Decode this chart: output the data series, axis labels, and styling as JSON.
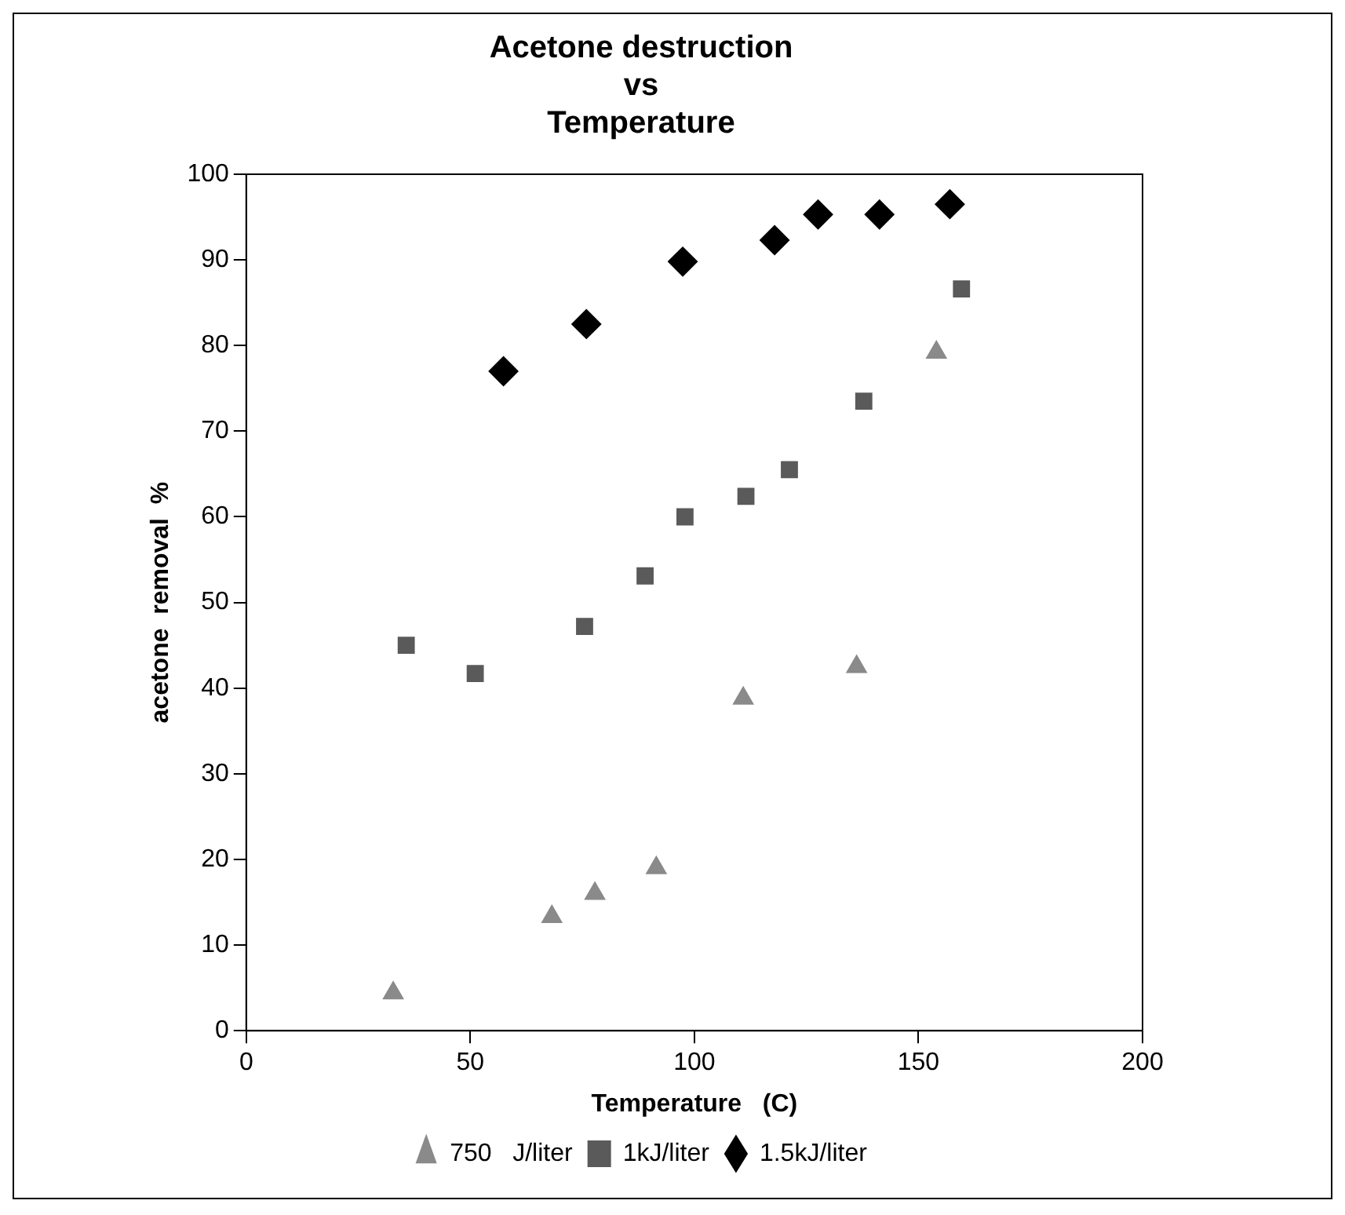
{
  "chart_data": {
    "type": "scatter",
    "title": "Acetone destruction\nvs\nTemperature",
    "xlabel": "Temperature   (C)",
    "ylabel": "acetone  removal  %",
    "xlim": [
      0,
      200
    ],
    "xticks": [
      0,
      50,
      100,
      150,
      200
    ],
    "ylim": [
      0,
      100
    ],
    "yticks": [
      0,
      10,
      20,
      30,
      40,
      50,
      60,
      70,
      80,
      90,
      100
    ],
    "grid": false,
    "legend": "bottom",
    "series": [
      {
        "name": "750   J/liter",
        "color": "#8a8a8a",
        "marker": "triangle",
        "x": [
          32.8,
          68.2,
          77.8,
          91.5,
          110.9,
          136.2,
          154
        ],
        "values": [
          4.4,
          13.3,
          16,
          19,
          38.8,
          42.5,
          79.2
        ]
      },
      {
        "name": "1kJ/liter",
        "color": "#5a5a5a",
        "marker": "square",
        "x": [
          35.7,
          51.1,
          75.5,
          89,
          97.9,
          111.5,
          121.2,
          137.8,
          159.6
        ],
        "values": [
          45,
          41.7,
          47.2,
          53.1,
          60,
          62.4,
          65.5,
          73.5,
          86.6
        ]
      },
      {
        "name": "1.5kJ/liter",
        "color": "#000000",
        "marker": "diamond",
        "x": [
          57.4,
          75.9,
          97.4,
          117.9,
          127.6,
          141.3,
          157
        ],
        "values": [
          77,
          82.5,
          89.8,
          92.3,
          95.3,
          95.3,
          96.5
        ]
      }
    ]
  }
}
